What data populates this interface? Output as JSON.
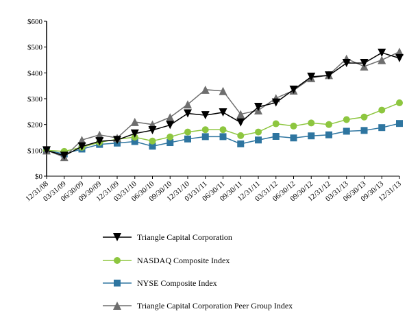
{
  "chart_data": {
    "type": "line",
    "title": "",
    "xlabel": "",
    "ylabel": "",
    "ylim": [
      0,
      600
    ],
    "yticks": [
      0,
      100,
      200,
      300,
      400,
      500,
      600
    ],
    "ytick_labels": [
      "$0",
      "$100",
      "$200",
      "$300",
      "$400",
      "$500",
      "$600"
    ],
    "grid": false,
    "legend_position": "bottom",
    "categories": [
      "12/31/08",
      "03/31/09",
      "06/30/09",
      "09/30/09",
      "12/31/09",
      "03/31/10",
      "06/30/10",
      "09/30/10",
      "12/31/10",
      "03/31/11",
      "06/30/11",
      "09/30/11",
      "12/31/11",
      "03/31/12",
      "06/30/12",
      "09/30/12",
      "12/31/12",
      "03/31/13",
      "06/30/13",
      "09/30/13",
      "12/31/13"
    ],
    "series": [
      {
        "name": "Triangle Capital Corporation",
        "color": "#000000",
        "marker": "triangle-down",
        "values": [
          100,
          79,
          115,
          135,
          140,
          165,
          178,
          198,
          243,
          236,
          247,
          208,
          268,
          285,
          335,
          385,
          390,
          438,
          438,
          478,
          457
        ]
      },
      {
        "name": "NASDAQ Composite Index",
        "color": "#8dc63f",
        "marker": "circle",
        "values": [
          100,
          96,
          112,
          131,
          143,
          151,
          136,
          152,
          171,
          180,
          180,
          157,
          171,
          203,
          194,
          206,
          200,
          219,
          229,
          256,
          284
        ]
      },
      {
        "name": "NYSE Composite Index",
        "color": "#2e75a0",
        "marker": "square",
        "values": [
          100,
          86,
          105,
          123,
          128,
          134,
          116,
          130,
          144,
          153,
          153,
          125,
          140,
          154,
          148,
          156,
          160,
          174,
          177,
          188,
          204
        ]
      },
      {
        "name": "Triangle Capital Corporation Peer Group Index",
        "color": "#6e6e6e",
        "marker": "triangle-up",
        "values": [
          100,
          74,
          140,
          160,
          148,
          210,
          200,
          228,
          278,
          335,
          330,
          240,
          255,
          302,
          332,
          380,
          392,
          455,
          425,
          450,
          482
        ]
      }
    ]
  }
}
